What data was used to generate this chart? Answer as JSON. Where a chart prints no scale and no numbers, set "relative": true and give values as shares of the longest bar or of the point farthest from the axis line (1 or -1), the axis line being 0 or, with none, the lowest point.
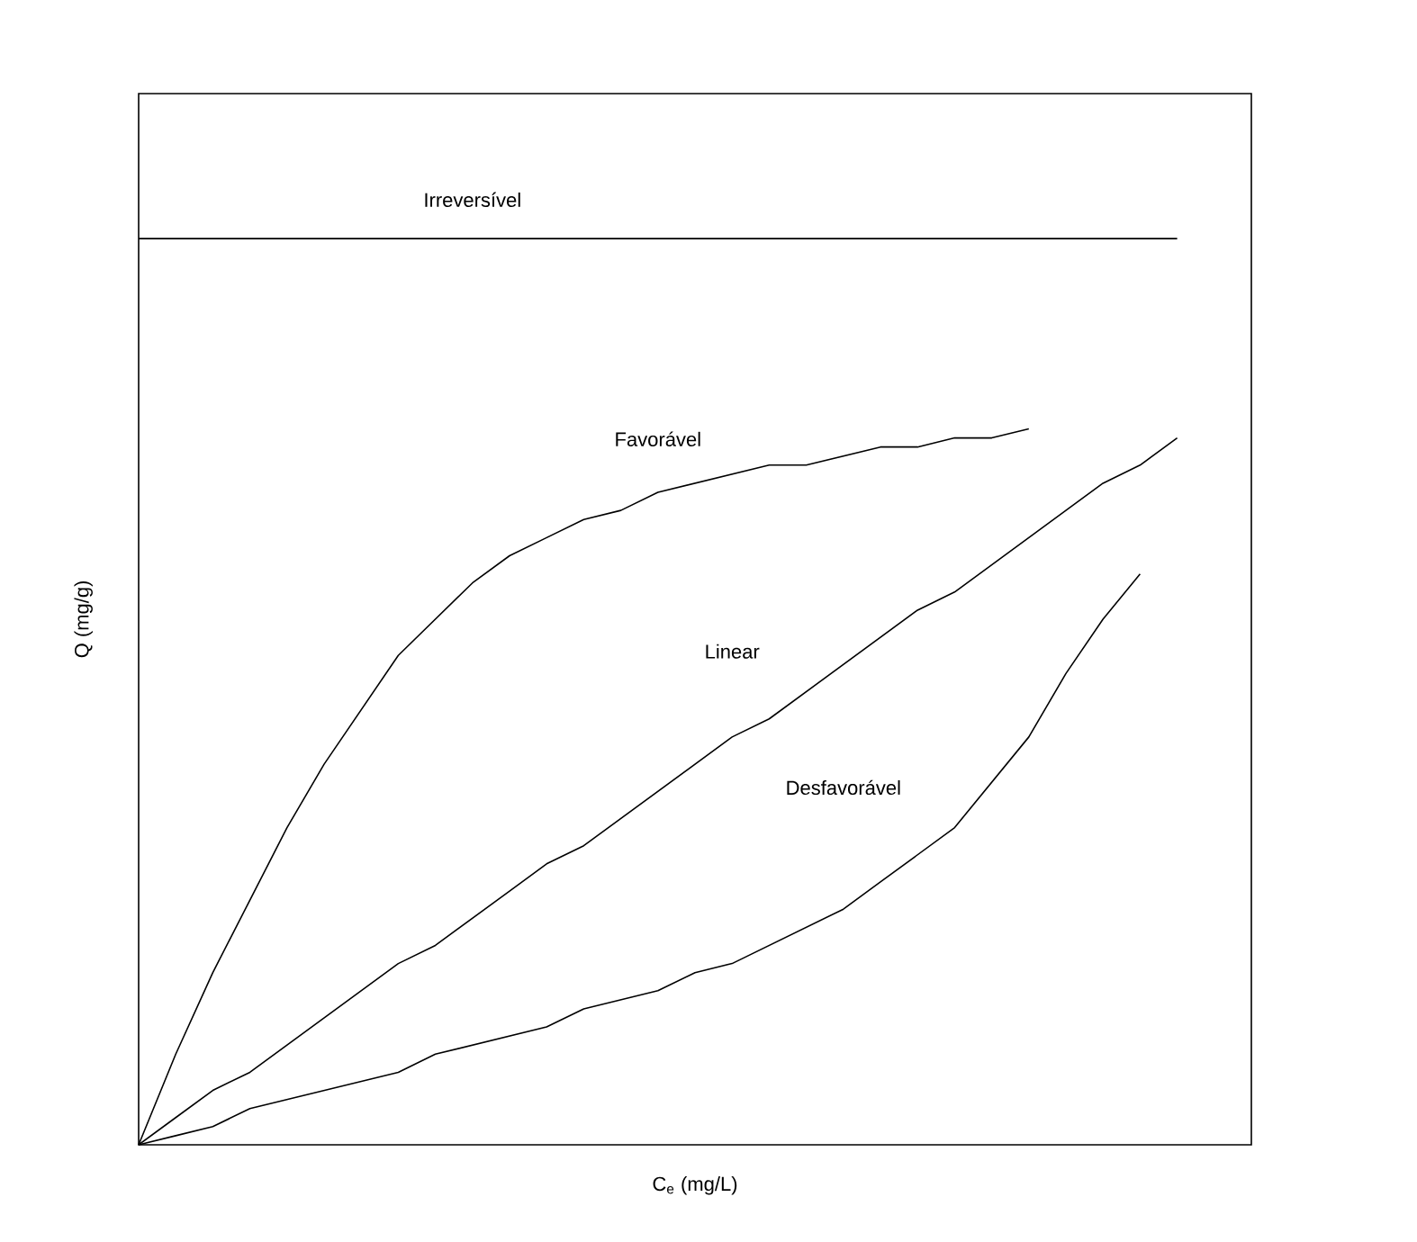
{
  "chart_data": {
    "type": "line",
    "relative": true,
    "xlabel": "C$_{e}$ (mg/L)",
    "ylabel": "Q (mg/g)",
    "categories": [
      null,
      null,
      null,
      null,
      null,
      null,
      null,
      null,
      null,
      null,
      null,
      null,
      null,
      null,
      null,
      null,
      null,
      null,
      null,
      null,
      null,
      null,
      null,
      null,
      null,
      null,
      null,
      null,
      null,
      null,
      null
    ],
    "marker": "none",
    "line_style": "solid",
    "series": [
      {
        "name": "Irreversível",
        "color": "#000000",
        "values": [
          1,
          1,
          1,
          1,
          1,
          1,
          1,
          1,
          1,
          1,
          1,
          1,
          1,
          1,
          1,
          1,
          1,
          1,
          1,
          1,
          1,
          1,
          1,
          1,
          1,
          1,
          1,
          1,
          1,
          null,
          null
        ]
      },
      {
        "name": "Favorável",
        "color": "#000000",
        "values": [
          0,
          0.1,
          0.19,
          0.27,
          0.35,
          0.42,
          0.48,
          0.54,
          0.58,
          0.62,
          0.65,
          0.67,
          0.69,
          0.7,
          0.72,
          0.73,
          0.74,
          0.75,
          0.75,
          0.76,
          0.77,
          0.77,
          0.78,
          0.78,
          0.79,
          null,
          null,
          null,
          null,
          null,
          null
        ]
      },
      {
        "name": "Linear",
        "color": "#000000",
        "values": [
          0,
          0.03,
          0.06,
          0.08,
          0.11,
          0.14,
          0.17,
          0.2,
          0.22,
          0.25,
          0.28,
          0.31,
          0.33,
          0.36,
          0.39,
          0.42,
          0.45,
          0.47,
          0.5,
          0.53,
          0.56,
          0.59,
          0.61,
          0.64,
          0.67,
          0.7,
          0.73,
          0.75,
          0.78,
          null,
          null
        ]
      },
      {
        "name": "Desfavorável",
        "color": "#000000",
        "values": [
          0,
          0.01,
          0.02,
          0.04,
          0.05,
          0.06,
          0.07,
          0.08,
          0.1,
          0.11,
          0.12,
          0.13,
          0.15,
          0.16,
          0.17,
          0.19,
          0.2,
          0.22,
          0.24,
          0.26,
          0.29,
          0.32,
          0.35,
          0.4,
          0.45,
          0.52,
          0.58,
          0.63,
          null,
          null,
          null
        ]
      }
    ]
  }
}
